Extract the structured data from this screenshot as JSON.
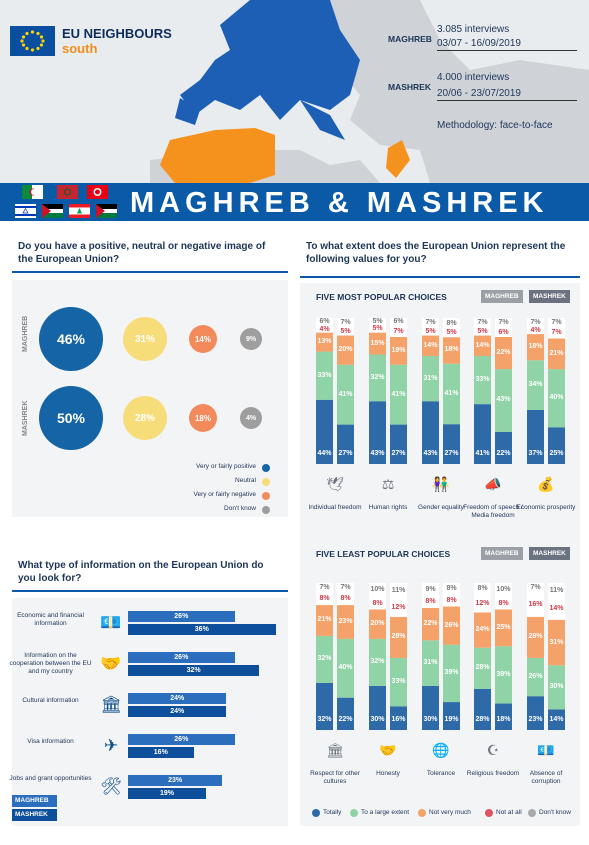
{
  "header": {
    "logo_line1": "EU NEIGHBOURS",
    "logo_line2": "south",
    "maghreb_label": "MAGHREB",
    "maghreb_interviews": "3.085 interviews",
    "maghreb_dates": "03/07 - 16/09/2019",
    "mashrek_label": "MASHREK",
    "mashrek_interviews": "4.000 interviews",
    "mashrek_dates": "20/06 - 23/07/2019",
    "methodology": "Methodology: face-to-face",
    "title": "MAGHREB & MASHREK"
  },
  "colors": {
    "dark_blue": "#1565a6",
    "light_blue": "#1a76c2",
    "totally": "#2f6aa8",
    "large": "#8fd3a6",
    "not_very": "#f5a26a",
    "not_at_all": "#e0545f",
    "dont_know": "#a9a9a9",
    "positive": "#1565a6",
    "neutral": "#f7dc7a",
    "negative": "#f28a5c",
    "dk": "#9e9e9e"
  },
  "image_panel": {
    "title": "Do you have a positive, neutral or negative image of the European Union?",
    "rows": [
      {
        "label": "MAGHREB",
        "values": [
          "46%",
          "31%",
          "14%",
          "9%"
        ]
      },
      {
        "label": "MASHREK",
        "values": [
          "50%",
          "28%",
          "18%",
          "4%"
        ]
      }
    ],
    "legend": [
      "Very or fairly positive",
      "Neutral",
      "Very or fairly negative",
      "Don't know"
    ]
  },
  "info_panel": {
    "title": "What type of information on the European Union do you look for?",
    "items": [
      {
        "label": "Economic and financial information",
        "maghreb": "26%",
        "mashrek": "36%",
        "icon": "money-icon"
      },
      {
        "label": "Information on the cooperation between the EU and my country",
        "maghreb": "26%",
        "mashrek": "32%",
        "icon": "handshake-icon"
      },
      {
        "label": "Cultural information",
        "maghreb": "24%",
        "mashrek": "24%",
        "icon": "museum-icon"
      },
      {
        "label": "Visa information",
        "maghreb": "26%",
        "mashrek": "16%",
        "icon": "plane-icon"
      },
      {
        "label": "Jobs and grant opportunities",
        "maghreb": "23%",
        "mashrek": "19%",
        "icon": "tools-icon"
      }
    ],
    "key_maghreb": "MAGHREB",
    "key_mashrek": "MASHREK"
  },
  "values_panel": {
    "title": "To what extent does the European Union represent the following values for you?",
    "top_title": "FIVE MOST POPULAR CHOICES",
    "bottom_title": "FIVE LEAST POPULAR CHOICES",
    "tag_maghreb": "MAGHREB",
    "tag_mashrek": "MASHREK",
    "legend": [
      "Totally",
      "To a large extent",
      "Not very much",
      "Not at all",
      "Don't know"
    ]
  },
  "chart_data": [
    {
      "type": "bar",
      "title": "FIVE MOST POPULAR CHOICES",
      "stacked": true,
      "categories": [
        "Individual freedom",
        "Human rights",
        "Gender equality",
        "Freedom of speech / Media freedom",
        "Economic prosperity"
      ],
      "series_names": [
        "Totally",
        "To a large extent",
        "Not very much",
        "Not at all",
        "Don't know"
      ],
      "maghreb": [
        [
          44,
          33,
          13,
          4,
          6
        ],
        [
          43,
          32,
          15,
          5,
          5
        ],
        [
          43,
          31,
          14,
          5,
          7
        ],
        [
          41,
          33,
          14,
          5,
          7
        ],
        [
          37,
          34,
          18,
          4,
          7
        ]
      ],
      "mashrek": [
        [
          27,
          41,
          20,
          5,
          7
        ],
        [
          27,
          41,
          19,
          7,
          6
        ],
        [
          27,
          41,
          18,
          5,
          8
        ],
        [
          22,
          43,
          22,
          6,
          7
        ],
        [
          25,
          40,
          21,
          7,
          7
        ]
      ]
    },
    {
      "type": "bar",
      "title": "FIVE LEAST POPULAR CHOICES",
      "stacked": true,
      "categories": [
        "Respect for other cultures",
        "Honesty",
        "Tolerance",
        "Religious freedom",
        "Absence of corruption"
      ],
      "series_names": [
        "Totally",
        "To a large extent",
        "Not very much",
        "Not at all",
        "Don't know"
      ],
      "maghreb": [
        [
          32,
          32,
          21,
          8,
          7
        ],
        [
          30,
          32,
          20,
          8,
          10
        ],
        [
          30,
          31,
          22,
          8,
          9
        ],
        [
          28,
          28,
          24,
          12,
          8
        ],
        [
          23,
          26,
          28,
          16,
          7
        ]
      ],
      "mashrek": [
        [
          22,
          40,
          23,
          8,
          7
        ],
        [
          16,
          33,
          28,
          12,
          11
        ],
        [
          19,
          39,
          26,
          8,
          8
        ],
        [
          18,
          39,
          25,
          8,
          10
        ],
        [
          14,
          30,
          31,
          14,
          11
        ]
      ]
    }
  ]
}
